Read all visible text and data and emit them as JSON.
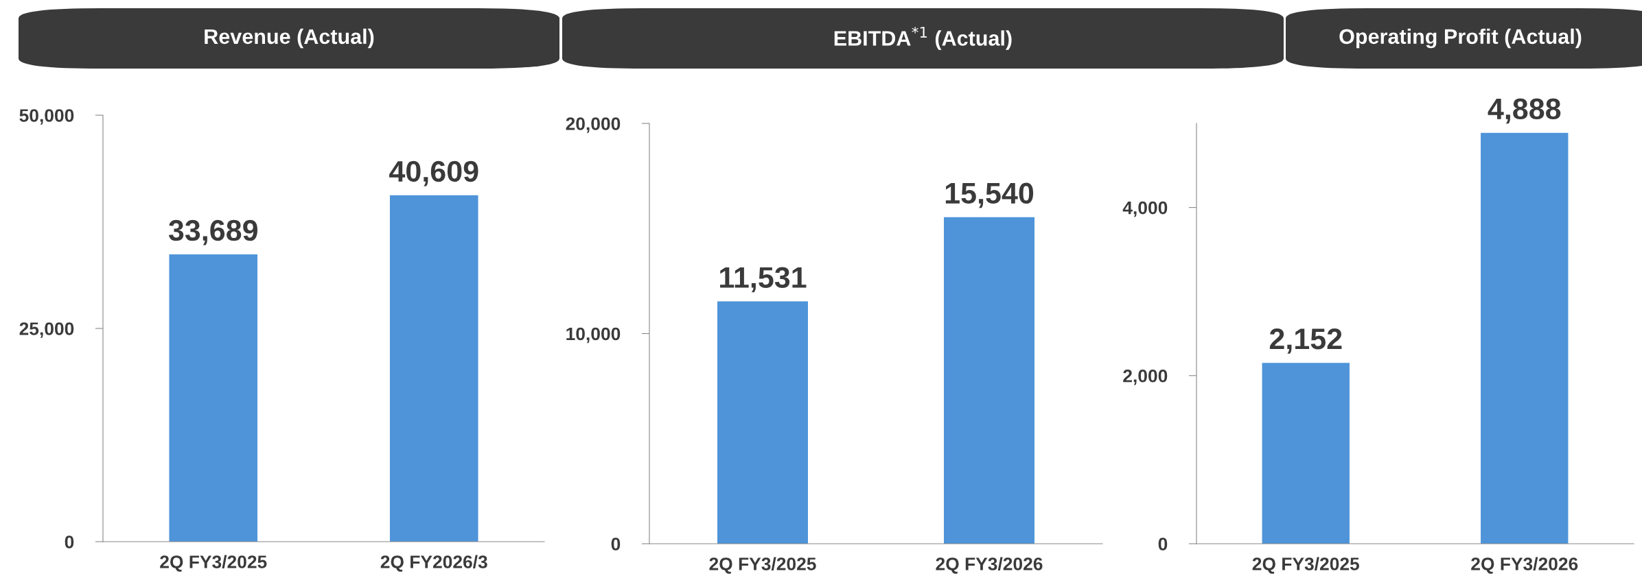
{
  "chart_data": [
    {
      "type": "bar",
      "title": "Revenue (Actual)",
      "categories": [
        "2Q FY3/2025",
        "2Q FY2026/3"
      ],
      "values": [
        33689,
        40609
      ],
      "color": "#4f94d9",
      "ylim": [
        0,
        50000
      ],
      "yticks": [
        {
          "value": 0,
          "label": "0"
        },
        {
          "value": 25000,
          "label": "25,000"
        },
        {
          "value": 50000,
          "label": "50,000"
        }
      ],
      "data_labels": true,
      "value_labels": [
        "33,689",
        "40,609"
      ],
      "grid": false,
      "legend": false
    },
    {
      "type": "bar",
      "title": "EBITDA$^{*1}$ (Actual)",
      "categories": [
        "2Q FY3/2025",
        "2Q FY3/2026"
      ],
      "values": [
        11531,
        15540
      ],
      "color": "#4f94d9",
      "ylim": [
        0,
        20000
      ],
      "yticks": [
        {
          "value": 0,
          "label": "0"
        },
        {
          "value": 10000,
          "label": "10,000"
        },
        {
          "value": 20000,
          "label": "20,000"
        }
      ],
      "data_labels": true,
      "value_labels": [
        "11,531",
        "15,540"
      ],
      "grid": false,
      "legend": false
    },
    {
      "type": "bar",
      "title": "Operating Profit (Actual)",
      "categories": [
        "2Q FY3/2025",
        "2Q FY3/2026"
      ],
      "values": [
        2152,
        4888
      ],
      "color": "#4f94d9",
      "ylim": [
        0,
        5000
      ],
      "yticks": [
        {
          "value": 0,
          "label": "0"
        },
        {
          "value": 2000,
          "label": "2,000"
        },
        {
          "value": 4000,
          "label": "4,000"
        }
      ],
      "data_labels": true,
      "value_labels": [
        "2,152",
        "4,888"
      ],
      "grid": false,
      "legend": false
    }
  ]
}
